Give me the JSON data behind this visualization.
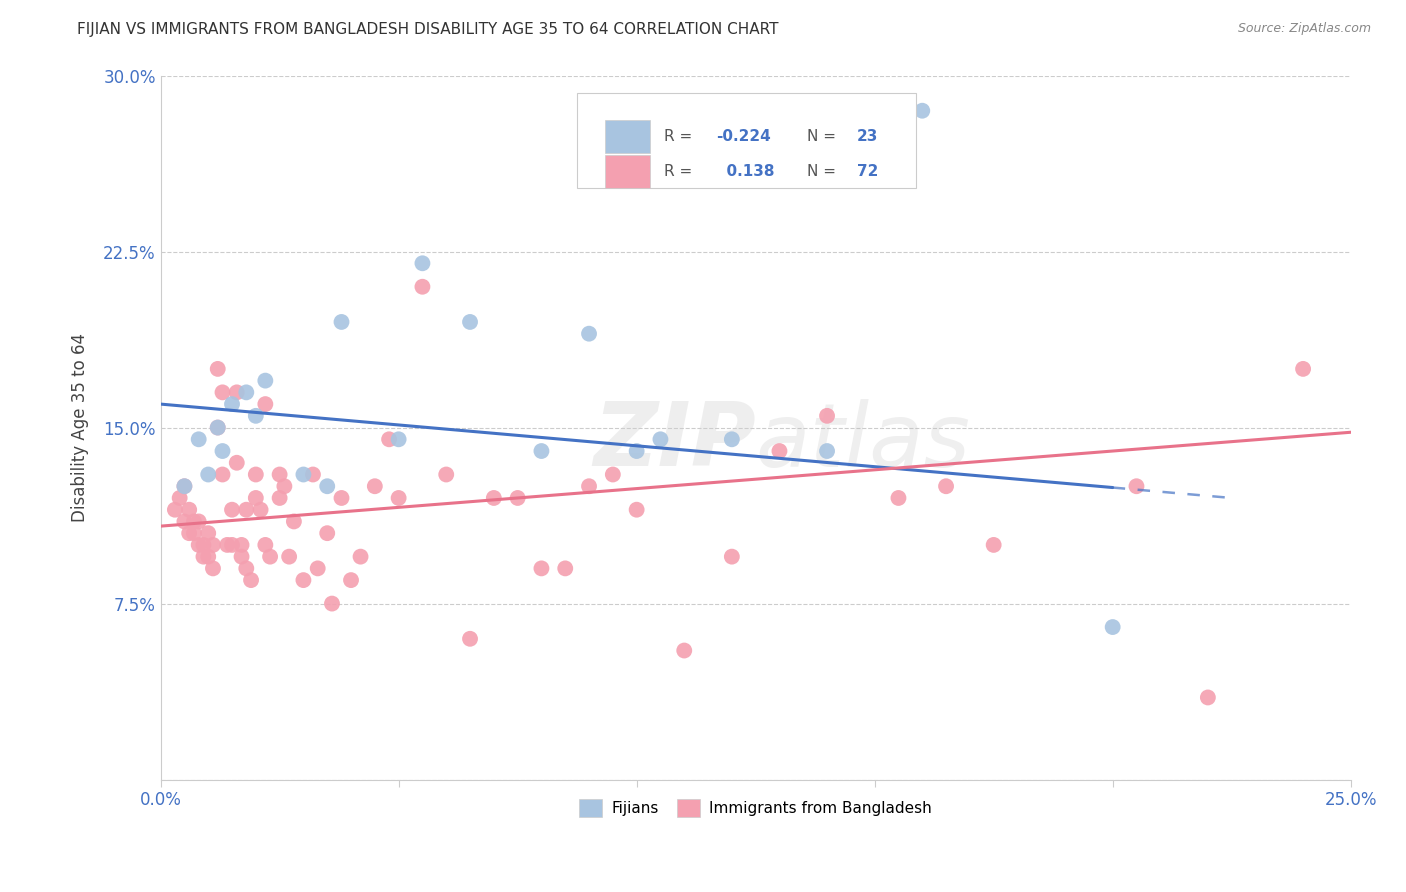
{
  "title": "FIJIAN VS IMMIGRANTS FROM BANGLADESH DISABILITY AGE 35 TO 64 CORRELATION CHART",
  "source": "Source: ZipAtlas.com",
  "ylabel": "Disability Age 35 to 64",
  "xlim": [
    0.0,
    0.25
  ],
  "ylim": [
    0.0,
    0.3
  ],
  "xticks": [
    0.0,
    0.05,
    0.1,
    0.15,
    0.2,
    0.25
  ],
  "yticks": [
    0.0,
    0.075,
    0.15,
    0.225,
    0.3
  ],
  "xtick_labels": [
    "0.0%",
    "",
    "",
    "",
    "",
    "25.0%"
  ],
  "ytick_labels": [
    "",
    "7.5%",
    "15.0%",
    "22.5%",
    "30.0%"
  ],
  "fijian_R": -0.224,
  "fijian_N": 23,
  "bangladesh_R": 0.138,
  "bangladesh_N": 72,
  "fijian_color": "#a8c4e0",
  "bangladesh_color": "#f4a0b0",
  "fijian_line_color": "#4472C4",
  "bangladesh_line_color": "#E8728A",
  "watermark": "ZIPatlas",
  "fijian_x": [
    0.005,
    0.008,
    0.01,
    0.012,
    0.013,
    0.015,
    0.018,
    0.02,
    0.022,
    0.03,
    0.035,
    0.038,
    0.05,
    0.055,
    0.065,
    0.08,
    0.09,
    0.1,
    0.105,
    0.12,
    0.14,
    0.16,
    0.2
  ],
  "fijian_y": [
    0.125,
    0.145,
    0.13,
    0.15,
    0.14,
    0.16,
    0.165,
    0.155,
    0.17,
    0.13,
    0.125,
    0.195,
    0.145,
    0.22,
    0.195,
    0.14,
    0.19,
    0.14,
    0.145,
    0.145,
    0.14,
    0.285,
    0.065
  ],
  "bangladesh_x": [
    0.003,
    0.004,
    0.005,
    0.005,
    0.006,
    0.006,
    0.007,
    0.007,
    0.008,
    0.008,
    0.009,
    0.009,
    0.01,
    0.01,
    0.011,
    0.011,
    0.012,
    0.012,
    0.013,
    0.013,
    0.014,
    0.015,
    0.015,
    0.016,
    0.016,
    0.017,
    0.017,
    0.018,
    0.018,
    0.019,
    0.02,
    0.02,
    0.021,
    0.022,
    0.022,
    0.023,
    0.025,
    0.025,
    0.026,
    0.027,
    0.028,
    0.03,
    0.032,
    0.033,
    0.035,
    0.036,
    0.038,
    0.04,
    0.042,
    0.045,
    0.048,
    0.05,
    0.055,
    0.06,
    0.065,
    0.07,
    0.075,
    0.08,
    0.085,
    0.09,
    0.095,
    0.1,
    0.11,
    0.12,
    0.13,
    0.14,
    0.155,
    0.165,
    0.175,
    0.205,
    0.22,
    0.24
  ],
  "bangladesh_y": [
    0.115,
    0.12,
    0.125,
    0.11,
    0.105,
    0.115,
    0.11,
    0.105,
    0.11,
    0.1,
    0.1,
    0.095,
    0.105,
    0.095,
    0.09,
    0.1,
    0.175,
    0.15,
    0.165,
    0.13,
    0.1,
    0.1,
    0.115,
    0.165,
    0.135,
    0.1,
    0.095,
    0.09,
    0.115,
    0.085,
    0.13,
    0.12,
    0.115,
    0.16,
    0.1,
    0.095,
    0.13,
    0.12,
    0.125,
    0.095,
    0.11,
    0.085,
    0.13,
    0.09,
    0.105,
    0.075,
    0.12,
    0.085,
    0.095,
    0.125,
    0.145,
    0.12,
    0.21,
    0.13,
    0.06,
    0.12,
    0.12,
    0.09,
    0.09,
    0.125,
    0.13,
    0.115,
    0.055,
    0.095,
    0.14,
    0.155,
    0.12,
    0.125,
    0.1,
    0.125,
    0.035,
    0.175
  ]
}
